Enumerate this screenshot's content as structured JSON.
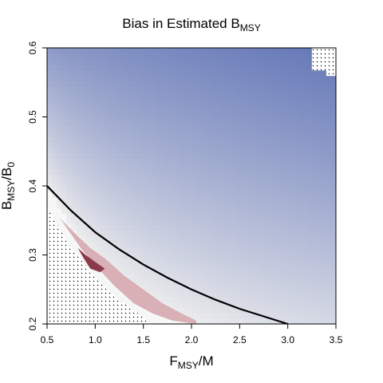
{
  "chart_data": {
    "type": "heatmap",
    "title": "Bias in Estimated B",
    "title_sub": "MSY",
    "xlabel": {
      "main": "F",
      "sub": "MSY",
      "after": "/M"
    },
    "ylabel": {
      "main": "B",
      "sub": "MSY",
      "mid": "/B",
      "sub2": "0"
    },
    "xlim": [
      0.5,
      3.5
    ],
    "ylim": [
      0.2,
      0.6
    ],
    "x_ticks": [
      0.5,
      1.0,
      1.5,
      2.0,
      2.5,
      3.0,
      3.5
    ],
    "x_tick_labels": [
      "0.5",
      "1.0",
      "1.5",
      "2.0",
      "2.5",
      "3.0",
      "3.5"
    ],
    "y_ticks": [
      0.2,
      0.3,
      0.4,
      0.5,
      0.6
    ],
    "y_tick_labels": [
      "0.2",
      "0.3",
      "0.4",
      "0.5",
      "0.6"
    ],
    "grid": false,
    "legend": "none",
    "colors": {
      "negative_bias": "#5b6fb4",
      "neutral": "#eeeeee",
      "positive_bias": "#8b3a4a",
      "curve": "#000000",
      "hatched_region_dots": "#000000"
    },
    "curve": {
      "description_note": "boundary line",
      "x": [
        0.5,
        0.75,
        1.0,
        1.25,
        1.5,
        1.75,
        2.0,
        2.25,
        2.5,
        2.75,
        3.0
      ],
      "y": [
        0.4,
        0.364,
        0.333,
        0.308,
        0.286,
        0.267,
        0.25,
        0.235,
        0.222,
        0.211,
        0.2
      ]
    },
    "positive_bias_region": {
      "x": [
        0.62,
        0.8,
        0.95,
        1.1,
        1.3,
        1.5,
        1.7,
        1.9,
        2.05,
        2.05,
        1.8,
        1.6,
        1.4,
        1.2,
        1.0,
        0.85,
        0.75,
        0.65
      ],
      "y": [
        0.355,
        0.33,
        0.31,
        0.295,
        0.27,
        0.25,
        0.23,
        0.215,
        0.205,
        0.2,
        0.205,
        0.215,
        0.23,
        0.255,
        0.285,
        0.31,
        0.33,
        0.35
      ]
    },
    "strong_positive_region": {
      "x": [
        0.82,
        0.9,
        1.0,
        1.1,
        1.05,
        0.95,
        0.88
      ],
      "y": [
        0.31,
        0.3,
        0.29,
        0.28,
        0.275,
        0.28,
        0.295
      ]
    }
  }
}
